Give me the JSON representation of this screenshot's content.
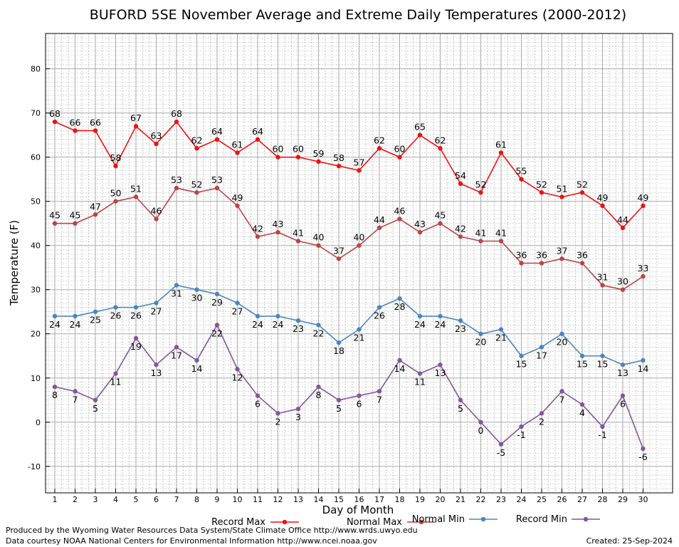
{
  "chart_data": {
    "type": "line",
    "title": "BUFORD 5SE November Average and Extreme Daily Temperatures (2000-2012)",
    "xlabel": "Day of Month",
    "ylabel": "Temperature (F)",
    "x": [
      1,
      2,
      3,
      4,
      5,
      6,
      7,
      8,
      9,
      10,
      11,
      12,
      13,
      14,
      15,
      16,
      17,
      18,
      19,
      20,
      21,
      22,
      23,
      24,
      25,
      26,
      27,
      28,
      29,
      30
    ],
    "xlim": [
      1,
      30
    ],
    "ylim": [
      -16,
      88
    ],
    "yticks": [
      -10,
      0,
      10,
      20,
      30,
      40,
      50,
      60,
      70,
      80
    ],
    "grid": true,
    "legend_position": "bottom",
    "series": [
      {
        "name": "Record Max",
        "color": "#ee1111",
        "label_position": "above",
        "values": [
          68,
          66,
          66,
          58,
          67,
          63,
          68,
          62,
          64,
          61,
          64,
          60,
          60,
          59,
          58,
          57,
          62,
          60,
          65,
          62,
          54,
          52,
          61,
          55,
          52,
          51,
          52,
          49,
          44,
          49
        ]
      },
      {
        "name": "Normal Max",
        "color": "#bb4444",
        "label_position": "above",
        "values": [
          45,
          45,
          47,
          50,
          51,
          46,
          53,
          52,
          53,
          49,
          42,
          43,
          41,
          40,
          37,
          40,
          44,
          46,
          43,
          45,
          42,
          41,
          41,
          36,
          36,
          37,
          36,
          31,
          30,
          33
        ]
      },
      {
        "name": "Normal Min",
        "color": "#4a86c0",
        "label_position": "below",
        "values": [
          24,
          24,
          25,
          26,
          26,
          27,
          31,
          30,
          29,
          27,
          24,
          24,
          23,
          22,
          18,
          21,
          26,
          28,
          24,
          24,
          23,
          20,
          21,
          15,
          17,
          20,
          15,
          15,
          13,
          14
        ]
      },
      {
        "name": "Record Min",
        "color": "#8455a0",
        "label_position": "below",
        "values": [
          8,
          7,
          5,
          11,
          19,
          13,
          17,
          14,
          22,
          12,
          6,
          2,
          3,
          8,
          5,
          6,
          7,
          14,
          11,
          13,
          5,
          0,
          -5,
          -1,
          2,
          7,
          4,
          -1,
          6,
          -6
        ]
      }
    ]
  },
  "footer": {
    "line1": "Produced by the Wyoming Water Resources Data System/State Climate Office http://www.wrds.uwyo.edu",
    "line2": "Data courtesy NOAA National Centers for Environmental Information http://www.ncei.noaa.gov",
    "created": "Created:  25-Sep-2024"
  }
}
